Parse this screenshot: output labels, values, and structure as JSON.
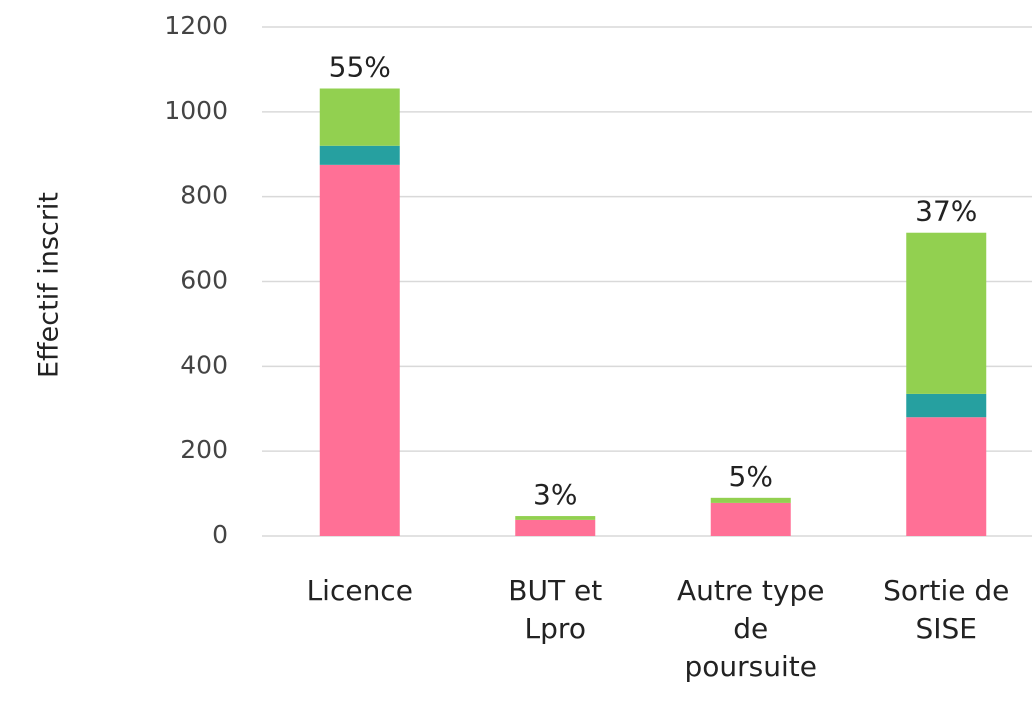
{
  "chart_data": {
    "type": "stacked_bar",
    "y_label": "Effectif inscrit",
    "categories": [
      "Licence",
      "BUT et\nLpro",
      "Autre type\nde\npoursuite",
      "Sortie de\nSISE"
    ],
    "series": [
      {
        "color": "#ff7096",
        "values": [
          875,
          38,
          78,
          280
        ]
      },
      {
        "color": "#26a0a0",
        "values": [
          45,
          0,
          0,
          55
        ]
      },
      {
        "color": "#92d050",
        "values": [
          135,
          9,
          12,
          380
        ]
      }
    ],
    "annotations": [
      "55%",
      "3%",
      "5%",
      "37%"
    ],
    "ylim": [
      0,
      1200
    ],
    "yticks": [
      0,
      200,
      400,
      600,
      800,
      1000,
      1200
    ],
    "grid": true
  }
}
